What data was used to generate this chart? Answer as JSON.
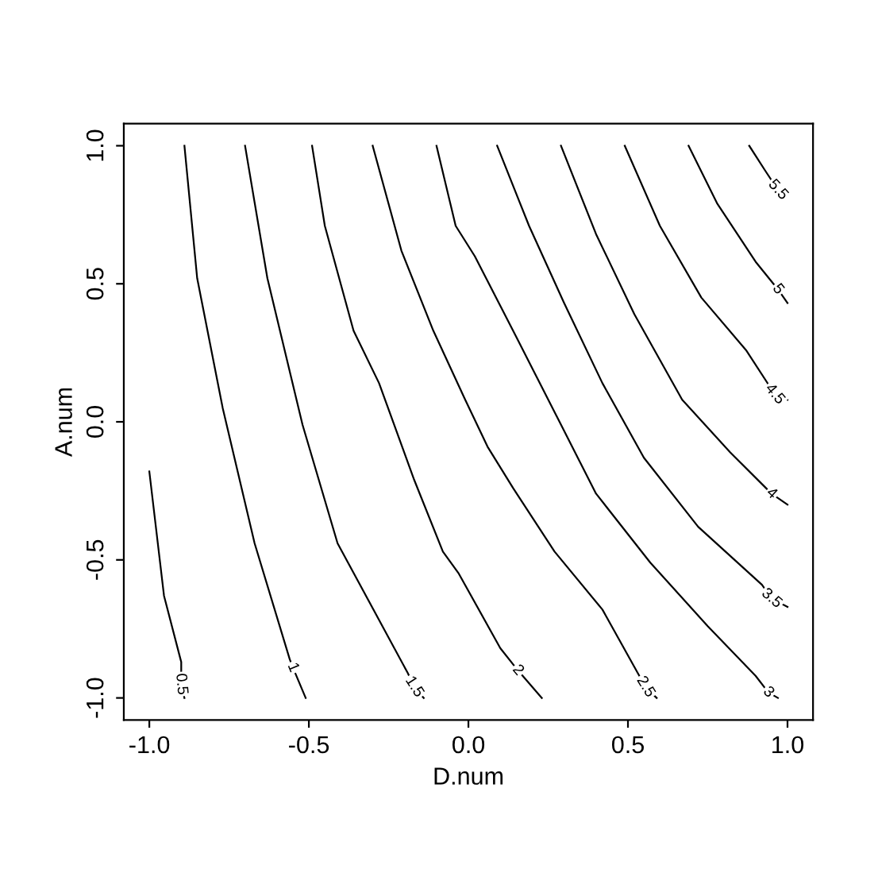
{
  "chart_data": {
    "type": "line",
    "xlabel": "D.num",
    "ylabel": "A.num",
    "xlim": [
      -1.08,
      1.08
    ],
    "ylim": [
      -1.08,
      1.08
    ],
    "xticks": [
      {
        "value": -1,
        "label": "-1.0"
      },
      {
        "value": -0.5,
        "label": "-0.5"
      },
      {
        "value": 0,
        "label": "0.0"
      },
      {
        "value": 0.5,
        "label": "0.5"
      },
      {
        "value": 1,
        "label": "1.0"
      }
    ],
    "yticks": [
      {
        "value": -1,
        "label": "-1.0"
      },
      {
        "value": -0.5,
        "label": "-0.5"
      },
      {
        "value": 0,
        "label": "0.0"
      },
      {
        "value": 0.5,
        "label": "0.5"
      },
      {
        "value": 1,
        "label": "1.0"
      }
    ],
    "grid": false,
    "legend": false,
    "marker": "none",
    "line_style": "solid",
    "series": [
      {
        "name": "0.5",
        "color": "#000000",
        "x": [
          -1.0,
          -0.954,
          -0.9,
          -0.9,
          -0.89
        ],
        "values": [
          -0.18,
          -0.63,
          -0.87,
          -0.95,
          -1.0
        ]
      },
      {
        "name": "1",
        "color": "#000000",
        "x": [
          -0.89,
          -0.85,
          -0.77,
          -0.67,
          -0.56,
          -0.55,
          -0.51
        ],
        "values": [
          1.0,
          0.52,
          0.05,
          -0.44,
          -0.86,
          -0.89,
          -1.0
        ]
      },
      {
        "name": "1.5",
        "color": "#000000",
        "x": [
          -0.7,
          -0.63,
          -0.52,
          -0.41,
          -0.19,
          -0.17,
          -0.14
        ],
        "values": [
          1.0,
          0.52,
          -0.01,
          -0.44,
          -0.91,
          -0.96,
          -1.0
        ]
      },
      {
        "name": "2",
        "color": "#000000",
        "x": [
          -0.49,
          -0.45,
          -0.36,
          -0.28,
          -0.17,
          -0.08,
          -0.03,
          0.1,
          0.155,
          0.23
        ],
        "values": [
          1.0,
          0.71,
          0.33,
          0.14,
          -0.21,
          -0.47,
          -0.55,
          -0.82,
          -0.9,
          -1.0
        ]
      },
      {
        "name": "2.5",
        "color": "#000000",
        "x": [
          -0.3,
          -0.21,
          -0.11,
          -0.01,
          0.06,
          0.14,
          0.27,
          0.42,
          0.555,
          0.59
        ],
        "values": [
          1.0,
          0.62,
          0.33,
          0.08,
          -0.09,
          -0.24,
          -0.47,
          -0.68,
          -0.96,
          -1.0
        ]
      },
      {
        "name": "3",
        "color": "#000000",
        "x": [
          -0.1,
          -0.04,
          0.02,
          0.14,
          0.29,
          0.4,
          0.57,
          0.75,
          0.9,
          0.94,
          0.97
        ],
        "values": [
          1.0,
          0.71,
          0.6,
          0.33,
          -0.01,
          -0.26,
          -0.51,
          -0.74,
          -0.92,
          -0.98,
          -1.0
        ]
      },
      {
        "name": "3.5",
        "color": "#000000",
        "x": [
          0.09,
          0.19,
          0.3,
          0.42,
          0.55,
          0.72,
          0.92,
          0.95,
          1.0
        ],
        "values": [
          1.0,
          0.71,
          0.43,
          0.14,
          -0.13,
          -0.38,
          -0.59,
          -0.64,
          -0.67
        ]
      },
      {
        "name": "4",
        "color": "#000000",
        "x": [
          0.29,
          0.4,
          0.52,
          0.67,
          0.82,
          0.95,
          1.0
        ],
        "values": [
          1.0,
          0.68,
          0.39,
          0.08,
          -0.11,
          -0.26,
          -0.3
        ]
      },
      {
        "name": "4.5",
        "color": "#000000",
        "x": [
          0.49,
          0.6,
          0.73,
          0.87,
          0.96,
          1.0
        ],
        "values": [
          1.0,
          0.71,
          0.45,
          0.26,
          0.1,
          0.08
        ]
      },
      {
        "name": "5",
        "color": "#000000",
        "x": [
          0.69,
          0.78,
          0.9,
          0.97,
          1.0
        ],
        "values": [
          1.0,
          0.79,
          0.58,
          0.48,
          0.43
        ]
      },
      {
        "name": "5.5",
        "color": "#000000",
        "x": [
          0.88,
          0.93,
          0.97,
          1.0
        ],
        "values": [
          1.0,
          0.91,
          0.84,
          0.82
        ]
      }
    ]
  }
}
